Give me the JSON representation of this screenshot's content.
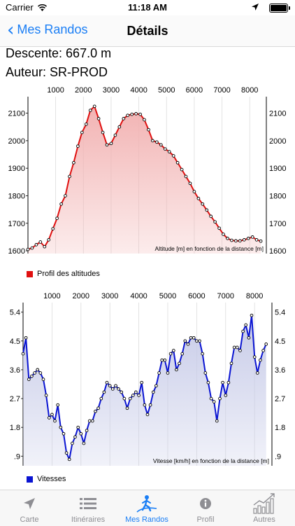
{
  "status": {
    "carrier": "Carrier",
    "time": "11:18 AM"
  },
  "nav": {
    "back_label": "Mes Randos",
    "title": "Détails"
  },
  "info": {
    "descente": "Descente: 667.0 m",
    "auteur": "Auteur: SR-PROD"
  },
  "chart_data": [
    {
      "type": "area",
      "annotation": "Altitude [m] en fonction de la distance [m]",
      "legend": "Profil des altitudes",
      "xticks": [
        1000,
        2000,
        3000,
        4000,
        5000,
        6000,
        7000,
        8000
      ],
      "yticks": [
        1600,
        1700,
        1800,
        1900,
        2000,
        2100
      ],
      "xlim": [
        0,
        8600
      ],
      "ylim": [
        1590,
        2160
      ],
      "color": "#e01010",
      "fill": "#f2b3b3",
      "x": [
        0,
        150,
        300,
        450,
        600,
        750,
        900,
        1050,
        1200,
        1350,
        1500,
        1650,
        1800,
        1950,
        2100,
        2250,
        2400,
        2550,
        2700,
        2850,
        3000,
        3150,
        3300,
        3450,
        3600,
        3750,
        3900,
        4050,
        4200,
        4350,
        4500,
        4650,
        4800,
        4950,
        5100,
        5250,
        5400,
        5550,
        5700,
        5850,
        6000,
        6150,
        6300,
        6450,
        6600,
        6750,
        6900,
        7050,
        7200,
        7350,
        7500,
        7650,
        7800,
        7950,
        8100,
        8250,
        8400
      ],
      "y": [
        1605,
        1610,
        1622,
        1632,
        1615,
        1640,
        1680,
        1718,
        1770,
        1800,
        1870,
        1920,
        1980,
        2030,
        2060,
        2110,
        2125,
        2080,
        2030,
        1985,
        1990,
        2020,
        2050,
        2080,
        2092,
        2096,
        2098,
        2096,
        2076,
        2040,
        2000,
        1995,
        1985,
        1970,
        1960,
        1945,
        1920,
        1895,
        1870,
        1845,
        1815,
        1790,
        1770,
        1748,
        1725,
        1705,
        1682,
        1660,
        1645,
        1638,
        1636,
        1636,
        1640,
        1645,
        1650,
        1640,
        1635
      ]
    },
    {
      "type": "area",
      "annotation": "Vitesse [km/h] en fonction de la distance [m]",
      "legend": "Vitesses",
      "xticks": [
        1000,
        2000,
        3000,
        4000,
        5000,
        6000,
        7000,
        8000
      ],
      "yticks": [
        ".9",
        "1.8",
        "2.7",
        "3.6",
        "4.5",
        "5.4"
      ],
      "ytick_values": [
        0.9,
        1.8,
        2.7,
        3.6,
        4.5,
        5.4
      ],
      "xlim": [
        0,
        8600
      ],
      "ylim": [
        0.6,
        5.7
      ],
      "color": "#0a14d2",
      "fill": "#c7cbe8",
      "x": [
        0,
        100,
        200,
        300,
        400,
        500,
        600,
        700,
        800,
        900,
        1000,
        1100,
        1200,
        1300,
        1400,
        1500,
        1600,
        1700,
        1800,
        1900,
        2000,
        2100,
        2200,
        2300,
        2400,
        2500,
        2600,
        2700,
        2800,
        2900,
        3000,
        3100,
        3200,
        3300,
        3400,
        3500,
        3600,
        3700,
        3800,
        3900,
        4000,
        4100,
        4200,
        4300,
        4400,
        4500,
        4600,
        4700,
        4800,
        4900,
        5000,
        5100,
        5200,
        5300,
        5400,
        5500,
        5600,
        5700,
        5800,
        5900,
        6000,
        6100,
        6200,
        6300,
        6400,
        6500,
        6600,
        6700,
        6800,
        6900,
        7000,
        7100,
        7200,
        7300,
        7400,
        7500,
        7600,
        7700,
        7800,
        7900,
        8000,
        8100,
        8200,
        8300,
        8400
      ],
      "y": [
        4.1,
        4.6,
        3.3,
        3.4,
        3.5,
        3.6,
        3.5,
        3.3,
        2.8,
        2.1,
        2.2,
        2.0,
        2.5,
        1.8,
        1.6,
        1.0,
        0.8,
        1.3,
        1.5,
        1.8,
        1.6,
        1.3,
        1.7,
        2.0,
        2.0,
        2.3,
        2.4,
        2.7,
        2.9,
        3.2,
        3.1,
        3.0,
        3.1,
        3.0,
        2.9,
        2.7,
        2.4,
        2.7,
        2.8,
        2.9,
        2.8,
        3.2,
        2.5,
        2.2,
        2.5,
        2.9,
        3.1,
        3.5,
        3.9,
        3.9,
        3.5,
        4.1,
        4.2,
        3.6,
        3.8,
        4.1,
        4.5,
        4.4,
        4.6,
        4.6,
        4.5,
        4.5,
        4.1,
        3.5,
        3.2,
        2.7,
        2.6,
        2.0,
        2.7,
        3.2,
        2.8,
        3.2,
        3.8,
        4.3,
        4.3,
        4.2,
        4.8,
        5.0,
        4.6,
        5.3,
        4.0,
        3.5,
        3.9,
        4.2,
        4.4
      ]
    }
  ],
  "tabs": [
    {
      "label": "Carte",
      "icon": "location-arrow-icon"
    },
    {
      "label": "Itinéraires",
      "icon": "list-icon"
    },
    {
      "label": "Mes Randos",
      "icon": "hiker-icon"
    },
    {
      "label": "Profil",
      "icon": "info-icon"
    },
    {
      "label": "Autres",
      "icon": "chart-icon"
    }
  ],
  "colors": {
    "accent": "#1a7ef5",
    "tab_inactive": "#8e8e93",
    "altitude": "#e01010",
    "speed": "#0a14d2"
  }
}
